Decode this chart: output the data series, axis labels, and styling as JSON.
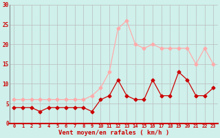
{
  "x": [
    0,
    1,
    2,
    3,
    4,
    5,
    6,
    7,
    8,
    9,
    10,
    11,
    12,
    13,
    14,
    15,
    16,
    17,
    18,
    19,
    20,
    21,
    22,
    23
  ],
  "wind_avg": [
    4,
    4,
    4,
    3,
    4,
    4,
    4,
    4,
    4,
    3,
    6,
    7,
    11,
    7,
    6,
    6,
    11,
    7,
    7,
    13,
    11,
    7,
    7,
    9
  ],
  "wind_gust": [
    6,
    6,
    6,
    6,
    6,
    6,
    6,
    6,
    6,
    7,
    9,
    13,
    24,
    26,
    20,
    19,
    20,
    19,
    19,
    19,
    19,
    15,
    19,
    15
  ],
  "bg_color": "#cff0eb",
  "avg_color": "#cc0000",
  "gust_color": "#ffaaaa",
  "grid_color": "#bbbbbb",
  "xlabel": "Vent moyen/en rafales ( km/h )",
  "xlabel_color": "#cc0000",
  "tick_color": "#cc0000",
  "spine_color": "#888888",
  "ylim": [
    0,
    30
  ],
  "yticks": [
    0,
    5,
    10,
    15,
    20,
    25,
    30
  ],
  "xlim": [
    -0.5,
    23.5
  ]
}
